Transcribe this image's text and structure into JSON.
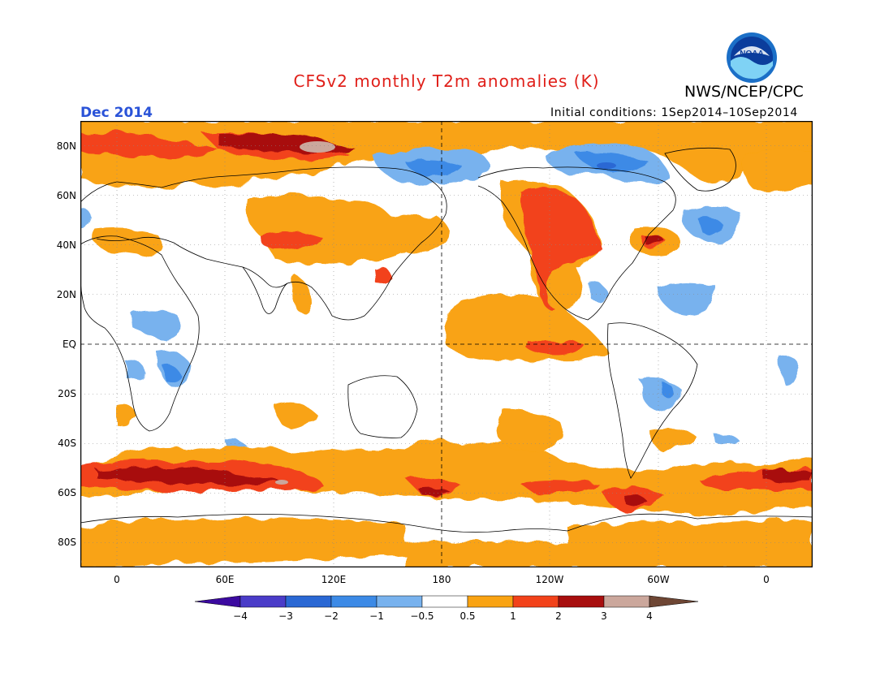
{
  "header": {
    "title": "CFSv2 monthly T2m anomalies (K)",
    "agency": "NWS/NCEP/CPC",
    "month": "Dec 2014",
    "initial_conditions": "Initial conditions: 1Sep2014–10Sep2014",
    "logo_text": "NOAA"
  },
  "colors": {
    "title": "#e0201a",
    "month": "#2a53d8",
    "below_4": "#3c0aa0",
    "n4_n3": "#4a3cc8",
    "n3_n2": "#2a68d4",
    "n2_n1": "#3c8ae6",
    "n1_n05": "#78b2ee",
    "neutral": "#ffffff",
    "p05_1": "#f9a312",
    "p1_2": "#f2421a",
    "p2_3": "#a80e0e",
    "p3_4": "#cba79c",
    "above_4": "#6e4634",
    "coast": "#000000"
  },
  "axes": {
    "lat_labels": [
      "80N",
      "60N",
      "40N",
      "20N",
      "EQ",
      "20S",
      "40S",
      "60S",
      "80S"
    ],
    "lon_labels": [
      "0",
      "60E",
      "120E",
      "180",
      "120W",
      "60W",
      "0"
    ]
  },
  "colorbar": {
    "labels": [
      "−4",
      "−3",
      "−2",
      "−1",
      "−0.5",
      "0.5",
      "1",
      "2",
      "3",
      "4"
    ]
  }
}
